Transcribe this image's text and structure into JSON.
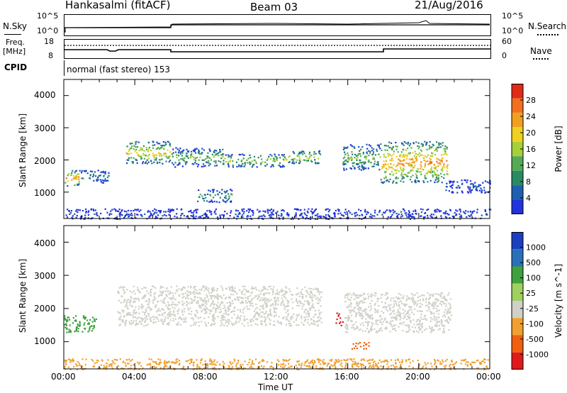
{
  "header": {
    "station": "Hankasalmi (fitACF)",
    "beam": "Beam 03",
    "date": "21/Aug/2016"
  },
  "noise_panel": {
    "left_label": "N.Sky",
    "right_label": "N.Search",
    "left_ticks": [
      "10^5",
      "10^0"
    ],
    "right_ticks": [
      "10^5",
      "10^0"
    ]
  },
  "freq_panel": {
    "left_label_1": "Freq.",
    "left_label_2": "[MHz]",
    "right_label": "Nave",
    "left_ticks": [
      "18",
      "8"
    ],
    "right_ticks": [
      "60",
      "0"
    ]
  },
  "cpid": {
    "label": "CPID",
    "mode": "normal (fast stereo) 153"
  },
  "axes": {
    "ylabel": "Slant Range [km]",
    "xlabel": "Time UT",
    "yticks": [
      "4000",
      "3000",
      "2000",
      "1000"
    ],
    "xticks": [
      "00:00",
      "04:00",
      "08:00",
      "12:00",
      "16:00",
      "20:00",
      "00:00"
    ]
  },
  "colors": {
    "power": [
      "#2233dd",
      "#1e5fb0",
      "#2a8a64",
      "#55aa55",
      "#a6cf3a",
      "#f0d020",
      "#f0a020",
      "#f07020",
      "#e02a1a"
    ],
    "velocity": [
      "#e01a1a",
      "#f06010",
      "#f0a030",
      "#d0d0c8",
      "#a0d060",
      "#40a040",
      "#2a70b8",
      "#1a40c0"
    ]
  },
  "chart_data": [
    {
      "type": "heatmap",
      "name_shown": "",
      "quantity_label": "Power [dB]",
      "colorbar_ticks": [
        "28",
        "24",
        "20",
        "16",
        "12",
        "8",
        "4"
      ],
      "colorbar_range": [
        0,
        30
      ],
      "x_range_hours": [
        0,
        24
      ],
      "ylim_km": [
        180,
        4500
      ],
      "yticks_km": [
        1000,
        2000,
        3000,
        4000
      ],
      "regions": [
        {
          "t": [
            0.0,
            0.9
          ],
          "r": [
            1200,
            1700
          ],
          "peak_db": 25
        },
        {
          "t": [
            0.9,
            2.5
          ],
          "r": [
            1300,
            1700
          ],
          "peak_db": 12
        },
        {
          "t": [
            3.5,
            6.0
          ],
          "r": [
            1900,
            2600
          ],
          "peak_db": 22
        },
        {
          "t": [
            6.0,
            9.0
          ],
          "r": [
            1800,
            2400
          ],
          "peak_db": 16
        },
        {
          "t": [
            7.5,
            9.5
          ],
          "r": [
            700,
            1100
          ],
          "peak_db": 14
        },
        {
          "t": [
            9.0,
            12.5
          ],
          "r": [
            1800,
            2200
          ],
          "peak_db": 18
        },
        {
          "t": [
            12.5,
            14.5
          ],
          "r": [
            1900,
            2300
          ],
          "peak_db": 20
        },
        {
          "t": [
            15.7,
            17.8
          ],
          "r": [
            1700,
            2500
          ],
          "peak_db": 16
        },
        {
          "t": [
            17.8,
            21.6
          ],
          "r": [
            1300,
            2600
          ],
          "peak_db": 26
        },
        {
          "t": [
            21.5,
            24.0
          ],
          "r": [
            1000,
            1400
          ],
          "peak_db": 8
        },
        {
          "t": [
            0.0,
            24.0
          ],
          "r": [
            180,
            500
          ],
          "peak_db": 6
        }
      ]
    },
    {
      "type": "heatmap",
      "quantity_label": "Velocity [m s^-1]",
      "colorbar_ticks": [
        "1000",
        "500",
        "100",
        "25",
        "-25",
        "-100",
        "-500",
        "-1000"
      ],
      "x_range_hours": [
        0,
        24
      ],
      "ylim_km": [
        180,
        4500
      ],
      "yticks_km": [
        1000,
        2000,
        3000,
        4000
      ],
      "regions": [
        {
          "t": [
            0.0,
            1.8
          ],
          "r": [
            1300,
            1800
          ],
          "velocity": 300
        },
        {
          "t": [
            3.0,
            14.5
          ],
          "r": [
            1500,
            2700
          ],
          "velocity": 0
        },
        {
          "t": [
            15.3,
            15.7
          ],
          "r": [
            1500,
            1900
          ],
          "velocity": -800
        },
        {
          "t": [
            15.8,
            21.8
          ],
          "r": [
            1300,
            2500
          ],
          "velocity": 0
        },
        {
          "t": [
            16.2,
            17.2
          ],
          "r": [
            800,
            1000
          ],
          "velocity": -300
        },
        {
          "t": [
            0.0,
            24.0
          ],
          "r": [
            180,
            500
          ],
          "velocity": -50
        }
      ]
    }
  ]
}
